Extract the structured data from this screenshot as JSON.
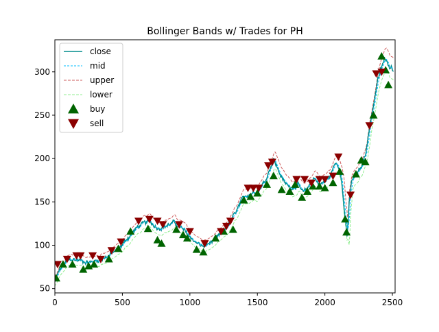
{
  "chart_data": {
    "type": "line",
    "title": "Bollinger Bands w/ Trades for PH",
    "xlabel": "",
    "ylabel": "",
    "xlim": [
      0,
      2520
    ],
    "ylim": [
      45,
      337
    ],
    "x_ticks": [
      0,
      500,
      1000,
      1500,
      2000,
      2500
    ],
    "y_ticks": [
      50,
      100,
      150,
      200,
      250,
      300
    ],
    "grid": false,
    "legend_position": "top-left",
    "colors": {
      "close": "#008b8b",
      "mid": "#00bfff",
      "upper": "#cd5c5c",
      "lower": "#90ee90",
      "buy": "#006400",
      "sell": "#8b0000"
    },
    "legend": [
      {
        "label": "close",
        "kind": "solid"
      },
      {
        "label": "mid",
        "kind": "dashed"
      },
      {
        "label": "upper",
        "kind": "dashed"
      },
      {
        "label": "lower",
        "kind": "dashed"
      },
      {
        "label": "buy",
        "kind": "up-triangle"
      },
      {
        "label": "sell",
        "kind": "down-triangle"
      }
    ],
    "close_anchors": [
      [
        0,
        58
      ],
      [
        30,
        70
      ],
      [
        80,
        80
      ],
      [
        120,
        84
      ],
      [
        200,
        82
      ],
      [
        260,
        80
      ],
      [
        320,
        83
      ],
      [
        400,
        88
      ],
      [
        480,
        97
      ],
      [
        560,
        112
      ],
      [
        620,
        122
      ],
      [
        700,
        128
      ],
      [
        760,
        120
      ],
      [
        820,
        122
      ],
      [
        880,
        126
      ],
      [
        950,
        118
      ],
      [
        1000,
        110
      ],
      [
        1040,
        104
      ],
      [
        1100,
        98
      ],
      [
        1150,
        103
      ],
      [
        1200,
        108
      ],
      [
        1250,
        116
      ],
      [
        1300,
        127
      ],
      [
        1340,
        138
      ],
      [
        1400,
        156
      ],
      [
        1450,
        160
      ],
      [
        1500,
        162
      ],
      [
        1560,
        175
      ],
      [
        1620,
        200
      ],
      [
        1650,
        188
      ],
      [
        1700,
        172
      ],
      [
        1760,
        166
      ],
      [
        1800,
        170
      ],
      [
        1840,
        160
      ],
      [
        1880,
        168
      ],
      [
        1920,
        178
      ],
      [
        1960,
        170
      ],
      [
        2000,
        173
      ],
      [
        2040,
        180
      ],
      [
        2080,
        196
      ],
      [
        2110,
        190
      ],
      [
        2130,
        165
      ],
      [
        2150,
        130
      ],
      [
        2165,
        108
      ],
      [
        2180,
        150
      ],
      [
        2200,
        175
      ],
      [
        2230,
        180
      ],
      [
        2270,
        190
      ],
      [
        2300,
        205
      ],
      [
        2330,
        235
      ],
      [
        2360,
        262
      ],
      [
        2390,
        290
      ],
      [
        2420,
        305
      ],
      [
        2440,
        315
      ],
      [
        2470,
        308
      ],
      [
        2500,
        305
      ],
      [
        2510,
        300
      ]
    ],
    "band_half_width": 9,
    "buy": [
      [
        10,
        62
      ],
      [
        60,
        78
      ],
      [
        130,
        78
      ],
      [
        210,
        72
      ],
      [
        250,
        76
      ],
      [
        290,
        78
      ],
      [
        400,
        84
      ],
      [
        470,
        96
      ],
      [
        560,
        116
      ],
      [
        690,
        119
      ],
      [
        760,
        106
      ],
      [
        790,
        102
      ],
      [
        900,
        118
      ],
      [
        950,
        112
      ],
      [
        980,
        108
      ],
      [
        1050,
        95
      ],
      [
        1100,
        92
      ],
      [
        1190,
        108
      ],
      [
        1250,
        116
      ],
      [
        1320,
        118
      ],
      [
        1400,
        152
      ],
      [
        1450,
        156
      ],
      [
        1500,
        160
      ],
      [
        1570,
        170
      ],
      [
        1620,
        180
      ],
      [
        1680,
        164
      ],
      [
        1740,
        162
      ],
      [
        1780,
        170
      ],
      [
        1830,
        155
      ],
      [
        1870,
        162
      ],
      [
        1910,
        168
      ],
      [
        1960,
        168
      ],
      [
        2000,
        166
      ],
      [
        2060,
        172
      ],
      [
        2110,
        185
      ],
      [
        2150,
        130
      ],
      [
        2160,
        115
      ],
      [
        2230,
        182
      ],
      [
        2270,
        198
      ],
      [
        2300,
        196
      ],
      [
        2360,
        250
      ],
      [
        2420,
        318
      ],
      [
        2450,
        302
      ],
      [
        2470,
        285
      ]
    ],
    "sell": [
      [
        20,
        78
      ],
      [
        90,
        84
      ],
      [
        160,
        88
      ],
      [
        190,
        88
      ],
      [
        280,
        88
      ],
      [
        340,
        84
      ],
      [
        420,
        94
      ],
      [
        490,
        104
      ],
      [
        620,
        128
      ],
      [
        700,
        130
      ],
      [
        760,
        128
      ],
      [
        800,
        124
      ],
      [
        920,
        124
      ],
      [
        1000,
        116
      ],
      [
        1110,
        102
      ],
      [
        1230,
        116
      ],
      [
        1270,
        122
      ],
      [
        1300,
        128
      ],
      [
        1430,
        166
      ],
      [
        1470,
        166
      ],
      [
        1510,
        166
      ],
      [
        1580,
        192
      ],
      [
        1610,
        196
      ],
      [
        1790,
        176
      ],
      [
        1850,
        176
      ],
      [
        1900,
        172
      ],
      [
        1960,
        176
      ],
      [
        2000,
        176
      ],
      [
        2060,
        180
      ],
      [
        2100,
        202
      ],
      [
        2190,
        158
      ],
      [
        2330,
        238
      ],
      [
        2380,
        298
      ],
      [
        2420,
        300
      ]
    ]
  }
}
